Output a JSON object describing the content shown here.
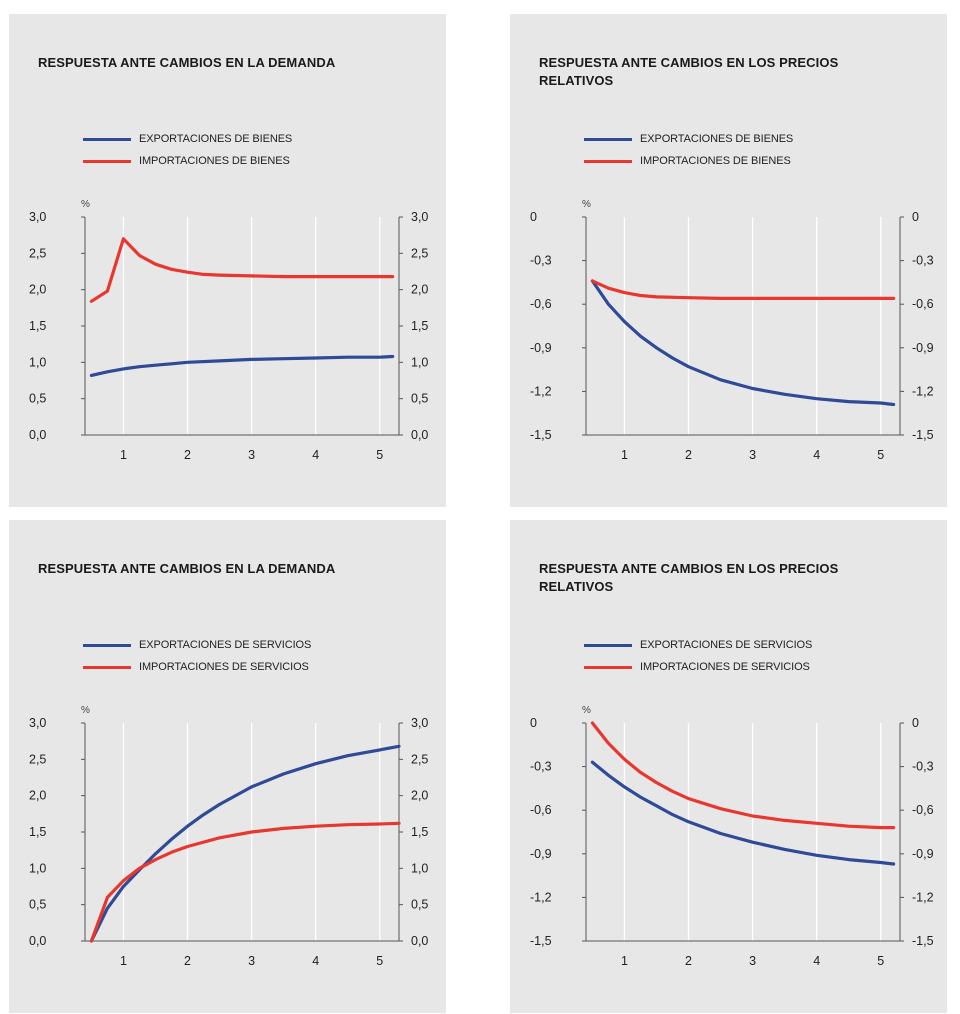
{
  "chart_data": [
    {
      "type": "line",
      "title": "RESPUESTA ANTE CAMBIOS EN LA DEMANDA",
      "unit": "%",
      "ylim": [
        0,
        3
      ],
      "yticks": [
        "3,0",
        "2,5",
        "2,0",
        "1,5",
        "1,0",
        "0,5",
        "0,0"
      ],
      "xlim": [
        0.4,
        5.3
      ],
      "xticks": [
        "1",
        "2",
        "3",
        "4",
        "5"
      ],
      "grid": true,
      "series": [
        {
          "name": "EXPORTACIONES DE BIENES",
          "color": "#2f4a96",
          "x": [
            0.5,
            0.75,
            1.0,
            1.25,
            1.5,
            1.75,
            2.0,
            2.5,
            3.0,
            3.5,
            4.0,
            4.5,
            5.0,
            5.2
          ],
          "y": [
            0.82,
            0.87,
            0.91,
            0.94,
            0.96,
            0.98,
            1.0,
            1.02,
            1.04,
            1.05,
            1.06,
            1.07,
            1.07,
            1.08
          ]
        },
        {
          "name": "IMPORTACIONES DE BIENES",
          "color": "#e8372f",
          "x": [
            0.5,
            0.75,
            1.0,
            1.25,
            1.5,
            1.75,
            2.0,
            2.25,
            2.5,
            3.0,
            3.5,
            4.0,
            4.5,
            5.0,
            5.2
          ],
          "y": [
            1.84,
            1.98,
            2.7,
            2.47,
            2.35,
            2.28,
            2.24,
            2.21,
            2.2,
            2.19,
            2.18,
            2.18,
            2.18,
            2.18,
            2.18
          ]
        }
      ]
    },
    {
      "type": "line",
      "title": "RESPUESTA ANTE CAMBIOS EN LOS PRECIOS RELATIVOS",
      "unit": "%",
      "ylim": [
        -1.5,
        0
      ],
      "yticks": [
        "0",
        "-0,3",
        "-0,6",
        "-0,9",
        "-1,2",
        "-1,5"
      ],
      "xlim": [
        0.4,
        5.3
      ],
      "xticks": [
        "1",
        "2",
        "3",
        "4",
        "5"
      ],
      "grid": true,
      "series": [
        {
          "name": "EXPORTACIONES DE BIENES",
          "color": "#2f4a96",
          "x": [
            0.5,
            0.75,
            1.0,
            1.25,
            1.5,
            1.75,
            2.0,
            2.5,
            3.0,
            3.5,
            4.0,
            4.5,
            5.0,
            5.2
          ],
          "y": [
            -0.44,
            -0.6,
            -0.72,
            -0.82,
            -0.9,
            -0.97,
            -1.03,
            -1.12,
            -1.18,
            -1.22,
            -1.25,
            -1.27,
            -1.28,
            -1.29
          ]
        },
        {
          "name": "IMPORTACIONES DE BIENES",
          "color": "#e8372f",
          "x": [
            0.5,
            0.75,
            1.0,
            1.25,
            1.5,
            2.0,
            2.5,
            3.0,
            3.5,
            4.0,
            4.5,
            5.0,
            5.2
          ],
          "y": [
            -0.44,
            -0.49,
            -0.52,
            -0.54,
            -0.55,
            -0.555,
            -0.56,
            -0.56,
            -0.56,
            -0.56,
            -0.56,
            -0.56,
            -0.56
          ]
        }
      ]
    },
    {
      "type": "line",
      "title": "RESPUESTA ANTE CAMBIOS EN LA DEMANDA",
      "unit": "%",
      "ylim": [
        0,
        3
      ],
      "yticks": [
        "3,0",
        "2,5",
        "2,0",
        "1,5",
        "1,0",
        "0,5",
        "0,0"
      ],
      "xlim": [
        0.4,
        5.3
      ],
      "xticks": [
        "1",
        "2",
        "3",
        "4",
        "5"
      ],
      "grid": true,
      "series": [
        {
          "name": "EXPORTACIONES DE SERVICIOS",
          "color": "#2f4a96",
          "x": [
            0.5,
            0.75,
            1.0,
            1.25,
            1.5,
            1.75,
            2.0,
            2.25,
            2.5,
            3.0,
            3.5,
            4.0,
            4.5,
            5.0,
            5.3
          ],
          "y": [
            0.0,
            0.45,
            0.75,
            0.98,
            1.2,
            1.4,
            1.58,
            1.74,
            1.88,
            2.12,
            2.3,
            2.44,
            2.55,
            2.63,
            2.68
          ]
        },
        {
          "name": "IMPORTACIONES DE SERVICIOS",
          "color": "#e8372f",
          "x": [
            0.5,
            0.75,
            1.0,
            1.25,
            1.5,
            1.75,
            2.0,
            2.5,
            3.0,
            3.5,
            4.0,
            4.5,
            5.0,
            5.3
          ],
          "y": [
            0.0,
            0.6,
            0.83,
            1.0,
            1.12,
            1.22,
            1.3,
            1.42,
            1.5,
            1.55,
            1.58,
            1.6,
            1.61,
            1.62
          ]
        }
      ]
    },
    {
      "type": "line",
      "title": "RESPUESTA ANTE CAMBIOS EN LOS PRECIOS RELATIVOS",
      "unit": "%",
      "ylim": [
        -1.5,
        0
      ],
      "yticks": [
        "0",
        "-0,3",
        "-0,6",
        "-0,9",
        "-1,2",
        "-1,5"
      ],
      "xlim": [
        0.4,
        5.3
      ],
      "xticks": [
        "1",
        "2",
        "3",
        "4",
        "5"
      ],
      "grid": true,
      "series": [
        {
          "name": "EXPORTACIONES DE SERVICIOS",
          "color": "#2f4a96",
          "x": [
            0.5,
            0.75,
            1.0,
            1.25,
            1.5,
            1.75,
            2.0,
            2.5,
            3.0,
            3.5,
            4.0,
            4.5,
            5.0,
            5.2
          ],
          "y": [
            -0.27,
            -0.36,
            -0.44,
            -0.51,
            -0.57,
            -0.63,
            -0.68,
            -0.76,
            -0.82,
            -0.87,
            -0.91,
            -0.94,
            -0.96,
            -0.97
          ]
        },
        {
          "name": "IMPORTACIONES DE SERVICIOS",
          "color": "#e8372f",
          "x": [
            0.5,
            0.75,
            1.0,
            1.25,
            1.5,
            1.75,
            2.0,
            2.5,
            3.0,
            3.5,
            4.0,
            4.5,
            5.0,
            5.2
          ],
          "y": [
            0.0,
            -0.14,
            -0.25,
            -0.34,
            -0.41,
            -0.47,
            -0.52,
            -0.59,
            -0.64,
            -0.67,
            -0.69,
            -0.71,
            -0.72,
            -0.72
          ]
        }
      ]
    }
  ]
}
